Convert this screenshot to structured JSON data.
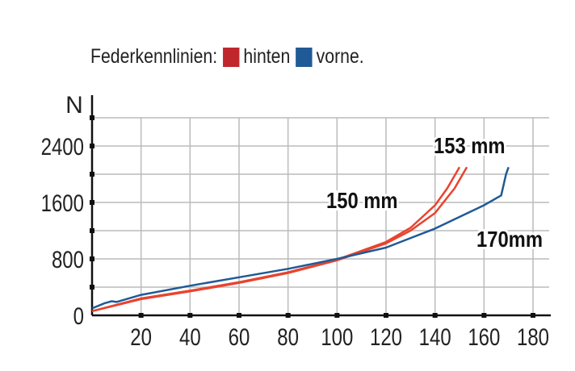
{
  "chart_data": {
    "type": "line",
    "legend": {
      "title": "Federkennlinien:",
      "placement": "top-left",
      "entries": [
        {
          "label": "hinten",
          "color": "#c0272d"
        },
        {
          "label": "vorne.",
          "color": "#1f5a96"
        }
      ]
    },
    "ylabel": "N",
    "xlabel": "",
    "xlim": [
      0,
      185
    ],
    "ylim": [
      0,
      2800
    ],
    "xticks": [
      20,
      40,
      60,
      80,
      100,
      120,
      140,
      160,
      180
    ],
    "yticks": [
      0,
      800,
      1600,
      2400
    ],
    "grid": true,
    "series": [
      {
        "name": "hinten",
        "color": "#e8432e",
        "label": "150 mm",
        "x": [
          0,
          20,
          40,
          60,
          80,
          100,
          120,
          130,
          140,
          145,
          150
        ],
        "y": [
          60,
          240,
          350,
          470,
          610,
          790,
          1040,
          1240,
          1560,
          1800,
          2100
        ]
      },
      {
        "name": "hinten",
        "color": "#e8432e",
        "label": "153 mm",
        "x": [
          0,
          20,
          40,
          60,
          80,
          100,
          120,
          130,
          140,
          148,
          153
        ],
        "y": [
          60,
          230,
          340,
          460,
          600,
          780,
          1020,
          1200,
          1450,
          1800,
          2100
        ]
      },
      {
        "name": "vorne",
        "color": "#1f5a96",
        "label": "170mm",
        "x": [
          0,
          5,
          8,
          10,
          20,
          40,
          60,
          80,
          100,
          120,
          140,
          160,
          167,
          169,
          170
        ],
        "y": [
          100,
          170,
          200,
          190,
          290,
          420,
          540,
          660,
          800,
          960,
          1230,
          1560,
          1700,
          2000,
          2100
        ]
      }
    ]
  }
}
